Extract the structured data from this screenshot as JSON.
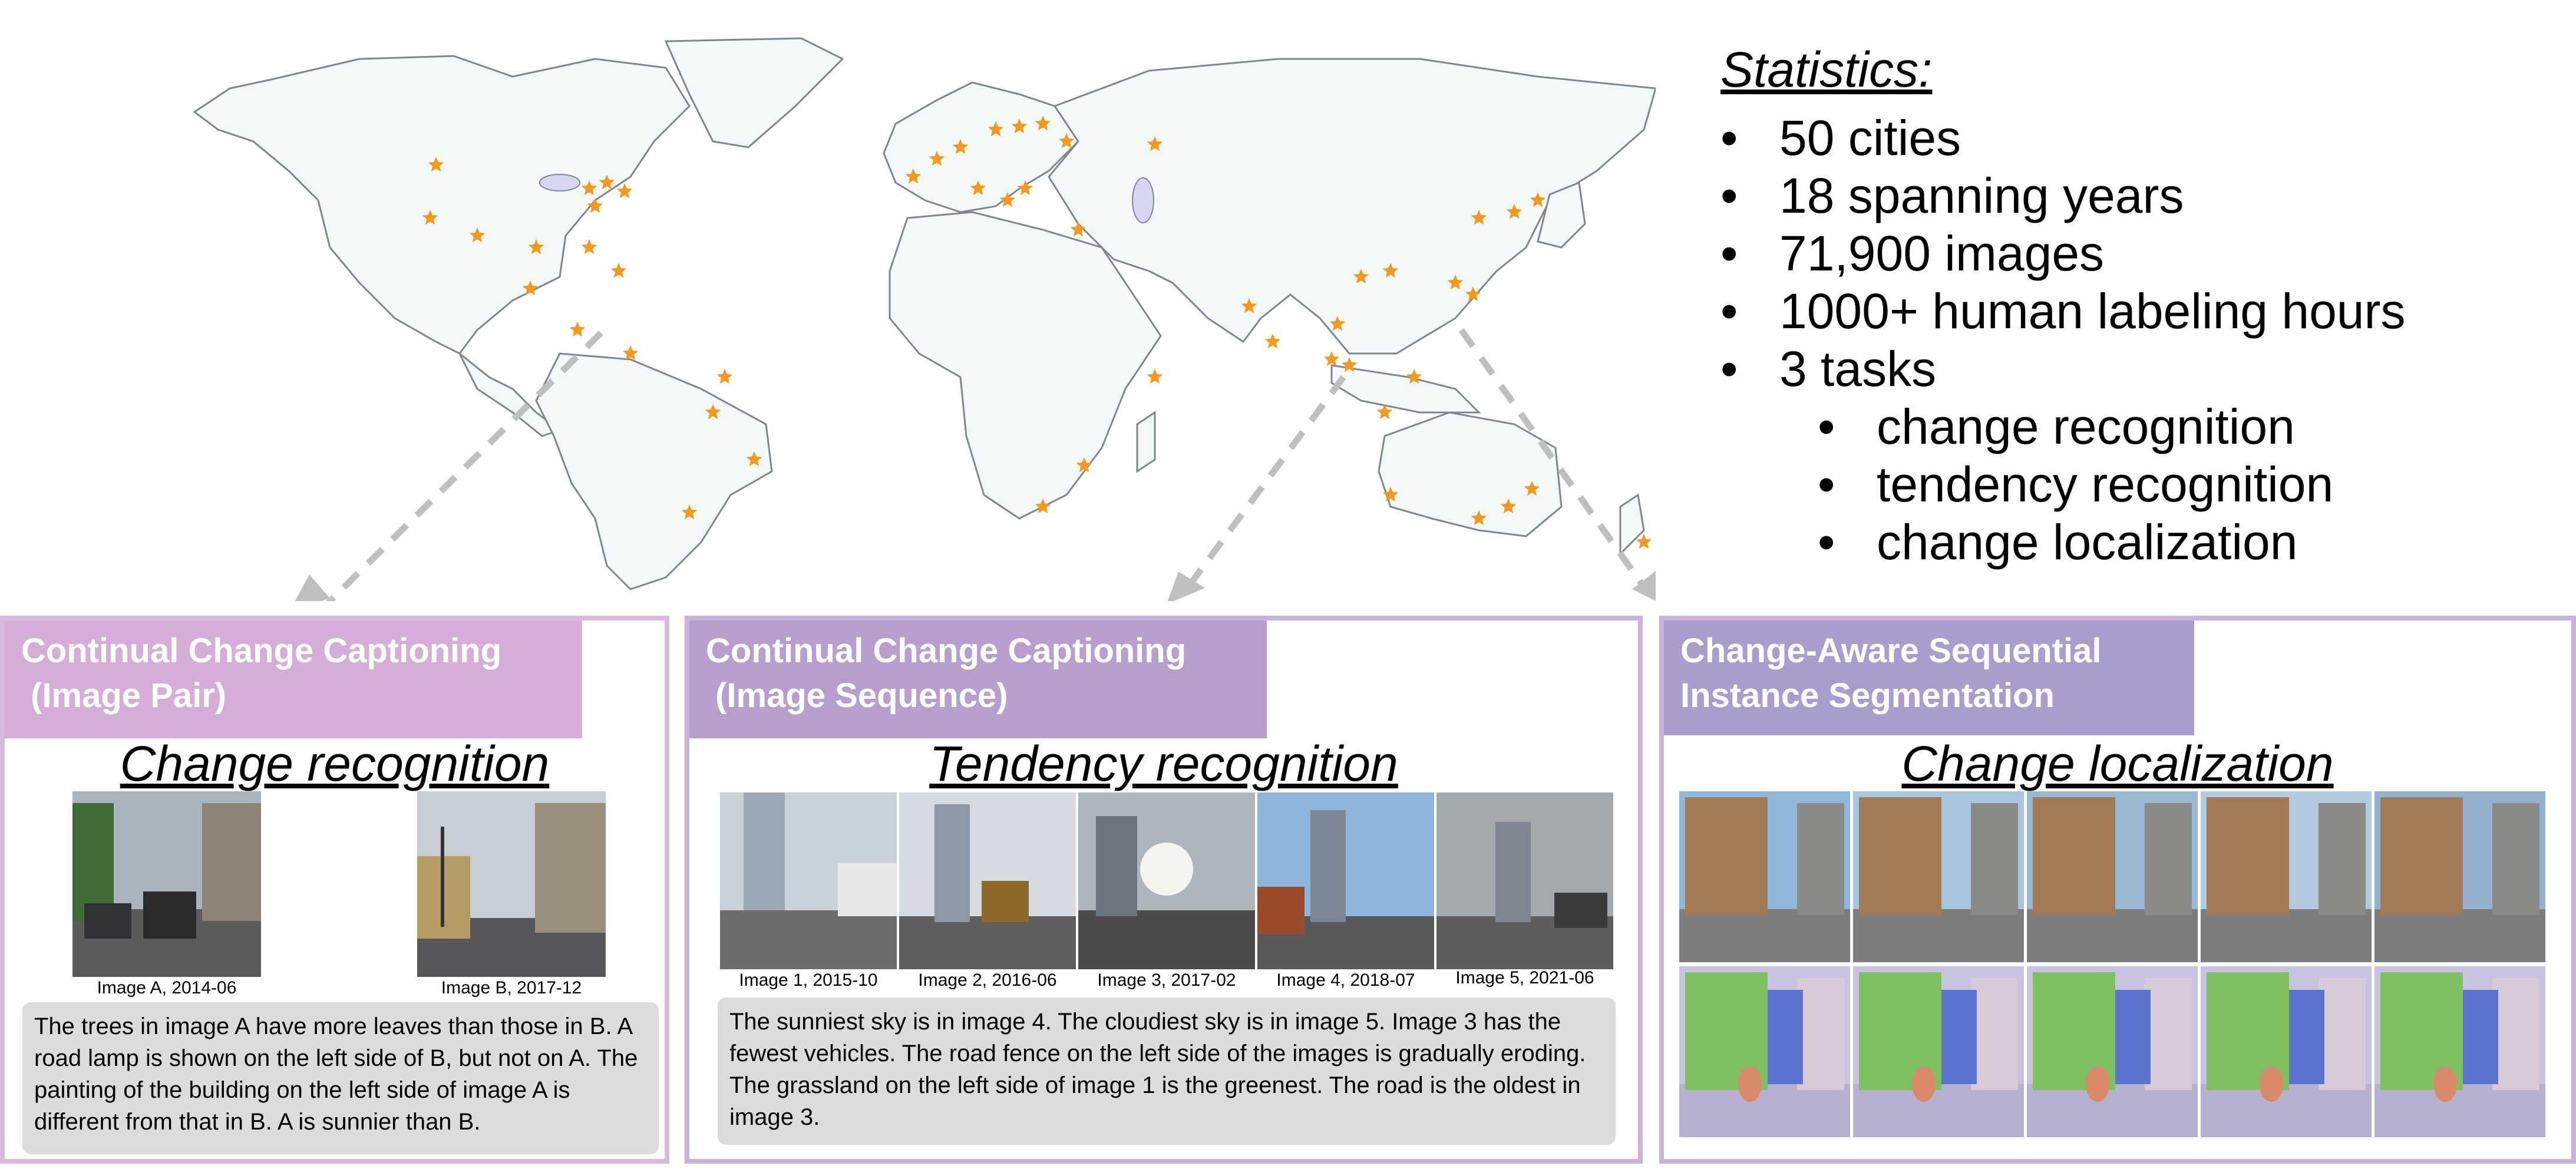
{
  "statistics": {
    "title": "Statistics:",
    "items": [
      "50 cities",
      "18 spanning years",
      "71,900 images",
      "1000+  human labeling hours",
      "3 tasks"
    ],
    "task_items": [
      "change recognition",
      "tendency recognition",
      "change localization"
    ]
  },
  "map": {
    "land_color": "#f3f8f9",
    "border_color": "#9aa2a8",
    "star_color": "#f39a1e",
    "arrow_color": "#bfbfbf"
  },
  "panels": [
    {
      "title_line1": "Continual Change Captioning",
      "title_line2": " (Image Pair)",
      "heading": "Change recognition",
      "captions": [
        "Image A, 2014-06",
        "Image B, 2017-12"
      ],
      "description": "The trees in image A have more leaves than those in B. A road lamp is shown on the left side of B, but not on A. The painting of the building on the left side of image A is different from that in B. A is sunnier than B."
    },
    {
      "title_line1": "Continual Change Captioning",
      "title_line2": " (Image Sequence)",
      "heading": "Tendency recognition",
      "captions": [
        "Image 1, 2015-10",
        "Image 2, 2016-06",
        "Image 3, 2017-02",
        "Image 4, 2018-07",
        "Image 5, 2021-06"
      ],
      "description": "The sunniest sky is in image 4. The cloudiest sky is in image 5. Image 3 has the fewest vehicles. The road fence on the left side of the images is gradually eroding. The grassland on the left side of image 1 is the greenest. The road is the oldest in image 3."
    },
    {
      "title_line1": "Change-Aware Sequential",
      "title_line2": "Instance Segmentation",
      "heading": "Change localization"
    }
  ]
}
